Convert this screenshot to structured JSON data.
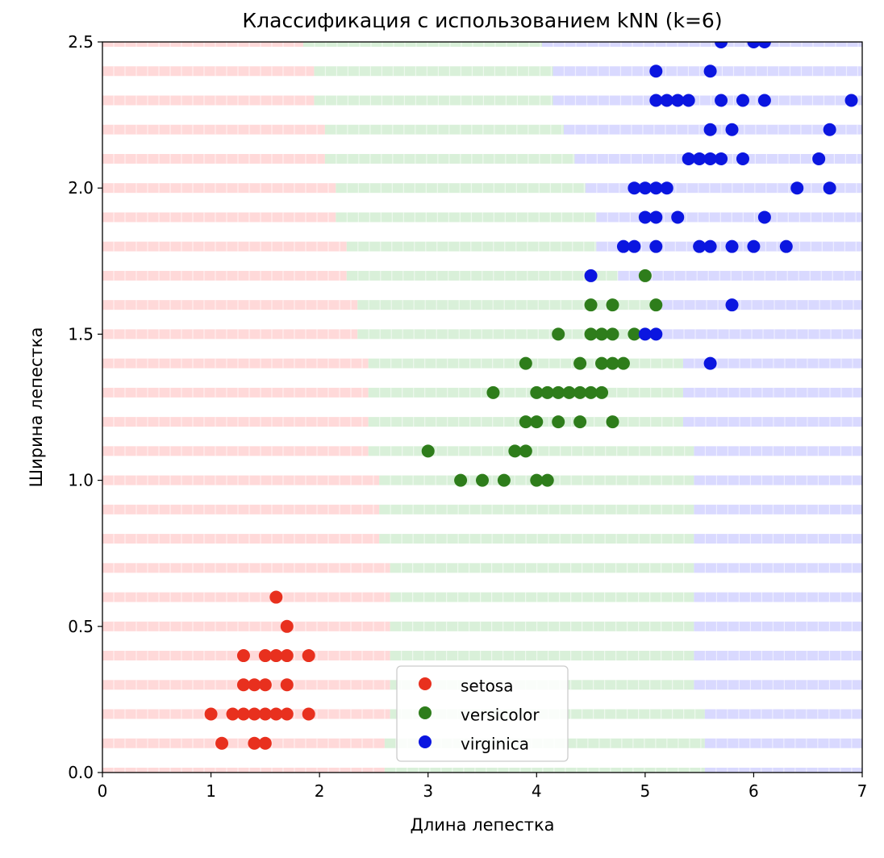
{
  "chart_data": {
    "type": "scatter",
    "title": "Классификация с использованием kNN (k=6)",
    "xlabel": "Длина лепестка",
    "ylabel": "Ширина лепестка",
    "xlim": [
      0,
      7
    ],
    "ylim": [
      0,
      2.5
    ],
    "xticks": [
      0,
      1,
      2,
      3,
      4,
      5,
      6,
      7
    ],
    "yticks": [
      0.0,
      0.5,
      1.0,
      1.5,
      2.0,
      2.5
    ],
    "xtick_labels": [
      "0",
      "1",
      "2",
      "3",
      "4",
      "5",
      "6",
      "7"
    ],
    "ytick_labels": [
      "0.0",
      "0.5",
      "1.0",
      "1.5",
      "2.0",
      "2.5"
    ],
    "legend": "lower-center",
    "colors": {
      "setosa": "#e8301e",
      "versicolor": "#2e7d1b",
      "virginica": "#0b16e0",
      "region_setosa": "#ffd9d9",
      "region_versicolor": "#d9f0d9",
      "region_virginica": "#d9d9ff"
    },
    "decision_regions": {
      "description": "kNN predicted class per petal-width band (0.1 step); boundaries in petal-length units",
      "rows": [
        {
          "y": 0.0,
          "b1": 2.6,
          "b2": 5.55
        },
        {
          "y": 0.1,
          "b1": 2.6,
          "b2": 5.55
        },
        {
          "y": 0.2,
          "b1": 2.65,
          "b2": 5.55
        },
        {
          "y": 0.3,
          "b1": 2.65,
          "b2": 5.45
        },
        {
          "y": 0.4,
          "b1": 2.65,
          "b2": 5.45
        },
        {
          "y": 0.5,
          "b1": 2.65,
          "b2": 5.45
        },
        {
          "y": 0.6,
          "b1": 2.65,
          "b2": 5.45
        },
        {
          "y": 0.7,
          "b1": 2.65,
          "b2": 5.45
        },
        {
          "y": 0.8,
          "b1": 2.55,
          "b2": 5.45
        },
        {
          "y": 0.9,
          "b1": 2.55,
          "b2": 5.45
        },
        {
          "y": 1.0,
          "b1": 2.55,
          "b2": 5.45
        },
        {
          "y": 1.1,
          "b1": 2.45,
          "b2": 5.45
        },
        {
          "y": 1.2,
          "b1": 2.45,
          "b2": 5.35
        },
        {
          "y": 1.3,
          "b1": 2.45,
          "b2": 5.35
        },
        {
          "y": 1.4,
          "b1": 2.45,
          "b2": 5.35
        },
        {
          "y": 1.5,
          "b1": 2.35,
          "b2": 5.15
        },
        {
          "y": 1.6,
          "b1": 2.35,
          "b2": 5.15
        },
        {
          "y": 1.7,
          "b1": 2.25,
          "b2": 4.75
        },
        {
          "y": 1.8,
          "b1": 2.25,
          "b2": 4.55
        },
        {
          "y": 1.9,
          "b1": 2.15,
          "b2": 4.55
        },
        {
          "y": 2.0,
          "b1": 2.15,
          "b2": 4.45
        },
        {
          "y": 2.1,
          "b1": 2.05,
          "b2": 4.35
        },
        {
          "y": 2.2,
          "b1": 2.05,
          "b2": 4.25
        },
        {
          "y": 2.3,
          "b1": 1.95,
          "b2": 4.15
        },
        {
          "y": 2.4,
          "b1": 1.95,
          "b2": 4.15
        },
        {
          "y": 2.5,
          "b1": 1.85,
          "b2": 4.05
        }
      ]
    },
    "series": [
      {
        "name": "setosa",
        "points": [
          [
            1.1,
            0.1
          ],
          [
            1.4,
            0.1
          ],
          [
            1.5,
            0.1
          ],
          [
            1.0,
            0.2
          ],
          [
            1.2,
            0.2
          ],
          [
            1.3,
            0.2
          ],
          [
            1.4,
            0.2
          ],
          [
            1.5,
            0.2
          ],
          [
            1.6,
            0.2
          ],
          [
            1.7,
            0.2
          ],
          [
            1.9,
            0.2
          ],
          [
            1.3,
            0.3
          ],
          [
            1.4,
            0.3
          ],
          [
            1.5,
            0.3
          ],
          [
            1.7,
            0.3
          ],
          [
            1.3,
            0.4
          ],
          [
            1.5,
            0.4
          ],
          [
            1.6,
            0.4
          ],
          [
            1.7,
            0.4
          ],
          [
            1.9,
            0.4
          ],
          [
            1.7,
            0.5
          ],
          [
            1.6,
            0.6
          ]
        ]
      },
      {
        "name": "versicolor",
        "points": [
          [
            3.3,
            1.0
          ],
          [
            3.5,
            1.0
          ],
          [
            3.7,
            1.0
          ],
          [
            4.0,
            1.0
          ],
          [
            4.1,
            1.0
          ],
          [
            3.0,
            1.1
          ],
          [
            3.8,
            1.1
          ],
          [
            3.9,
            1.1
          ],
          [
            3.9,
            1.2
          ],
          [
            4.0,
            1.2
          ],
          [
            4.2,
            1.2
          ],
          [
            4.4,
            1.2
          ],
          [
            4.7,
            1.2
          ],
          [
            3.6,
            1.3
          ],
          [
            4.0,
            1.3
          ],
          [
            4.1,
            1.3
          ],
          [
            4.2,
            1.3
          ],
          [
            4.3,
            1.3
          ],
          [
            4.4,
            1.3
          ],
          [
            4.5,
            1.3
          ],
          [
            4.6,
            1.3
          ],
          [
            3.9,
            1.4
          ],
          [
            4.4,
            1.4
          ],
          [
            4.6,
            1.4
          ],
          [
            4.7,
            1.4
          ],
          [
            4.8,
            1.4
          ],
          [
            4.2,
            1.5
          ],
          [
            4.5,
            1.5
          ],
          [
            4.6,
            1.5
          ],
          [
            4.7,
            1.5
          ],
          [
            4.9,
            1.5
          ],
          [
            4.5,
            1.6
          ],
          [
            4.7,
            1.6
          ],
          [
            5.1,
            1.6
          ],
          [
            5.0,
            1.7
          ]
        ]
      },
      {
        "name": "virginica",
        "points": [
          [
            5.6,
            1.4
          ],
          [
            5.0,
            1.5
          ],
          [
            5.1,
            1.5
          ],
          [
            5.8,
            1.6
          ],
          [
            4.5,
            1.7
          ],
          [
            4.8,
            1.8
          ],
          [
            4.9,
            1.8
          ],
          [
            5.1,
            1.8
          ],
          [
            5.5,
            1.8
          ],
          [
            5.6,
            1.8
          ],
          [
            5.8,
            1.8
          ],
          [
            6.0,
            1.8
          ],
          [
            6.3,
            1.8
          ],
          [
            5.0,
            1.9
          ],
          [
            5.1,
            1.9
          ],
          [
            5.3,
            1.9
          ],
          [
            6.1,
            1.9
          ],
          [
            4.9,
            2.0
          ],
          [
            5.0,
            2.0
          ],
          [
            5.1,
            2.0
          ],
          [
            5.2,
            2.0
          ],
          [
            6.4,
            2.0
          ],
          [
            6.7,
            2.0
          ],
          [
            5.4,
            2.1
          ],
          [
            5.5,
            2.1
          ],
          [
            5.6,
            2.1
          ],
          [
            5.7,
            2.1
          ],
          [
            5.9,
            2.1
          ],
          [
            6.6,
            2.1
          ],
          [
            5.6,
            2.2
          ],
          [
            5.8,
            2.2
          ],
          [
            6.7,
            2.2
          ],
          [
            5.1,
            2.3
          ],
          [
            5.2,
            2.3
          ],
          [
            5.3,
            2.3
          ],
          [
            5.4,
            2.3
          ],
          [
            5.7,
            2.3
          ],
          [
            5.9,
            2.3
          ],
          [
            6.1,
            2.3
          ],
          [
            6.9,
            2.3
          ],
          [
            5.1,
            2.4
          ],
          [
            5.6,
            2.4
          ],
          [
            5.7,
            2.5
          ],
          [
            6.0,
            2.5
          ],
          [
            6.1,
            2.5
          ]
        ]
      }
    ]
  }
}
